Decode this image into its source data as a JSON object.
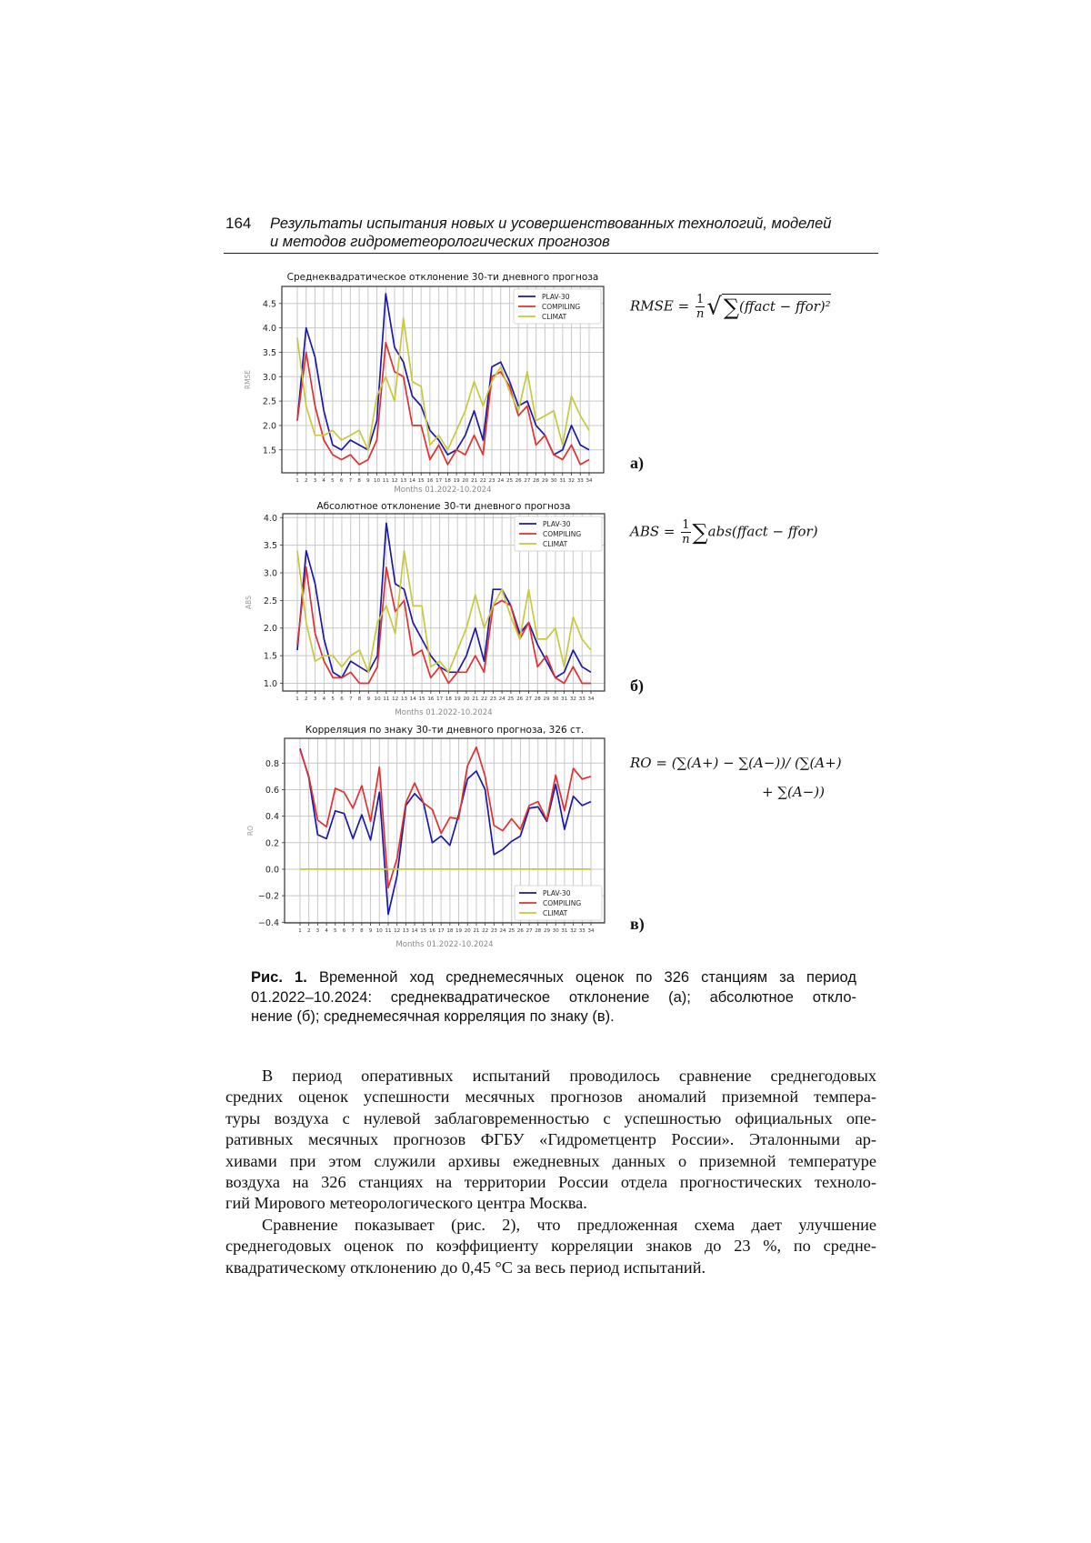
{
  "header": {
    "page_number": "164",
    "title_line1": "Результаты испытания новых и усовершенствованных технологий, моделей",
    "title_line2": "и методов гидрометеорологических прогнозов"
  },
  "formulas": {
    "rmse": {
      "lhs": "RMSE =",
      "num": "1",
      "den": "n",
      "sum": "∑",
      "body": "(ffact − ffor)²"
    },
    "abs": {
      "lhs": "ABS =",
      "num": "1",
      "den": "n",
      "sum": "∑",
      "body": "abs(ffact − ffor)"
    },
    "ro": {
      "line1": "RO = (∑(A+) − ∑(A−))/ (∑(A+)",
      "line2": "+ ∑(A−))"
    }
  },
  "panel_labels": [
    "а)",
    "б)",
    "в)"
  ],
  "colors": {
    "plav": "#1a1aa6",
    "compiling": "#e03030",
    "climat": "#c8c83a"
  },
  "chart_data": [
    {
      "type": "line",
      "title": "Среднеквадратическое отклонение 30-ти дневного прогноза",
      "xlabel": "Months 01.2022-10.2024",
      "ylabel": "RMSE",
      "x": [
        1,
        2,
        3,
        4,
        5,
        6,
        7,
        8,
        9,
        10,
        11,
        12,
        13,
        14,
        15,
        16,
        17,
        18,
        19,
        20,
        21,
        22,
        23,
        24,
        25,
        26,
        27,
        28,
        29,
        30,
        31,
        32,
        33,
        34
      ],
      "ylim": [
        1.03,
        4.85
      ],
      "yticks": [
        "1.5",
        "2.0",
        "2.5",
        "3.0",
        "3.5",
        "4.0",
        "4.5"
      ],
      "grid": true,
      "legend": "top-right",
      "series": [
        {
          "name": "PLAV-30",
          "values": [
            2.1,
            4.0,
            3.4,
            2.3,
            1.6,
            1.5,
            1.7,
            1.6,
            1.5,
            2.1,
            4.7,
            3.6,
            3.3,
            2.6,
            2.4,
            1.9,
            1.7,
            1.4,
            1.5,
            1.8,
            2.3,
            1.7,
            3.2,
            3.3,
            2.9,
            2.4,
            2.5,
            2.0,
            1.8,
            1.4,
            1.5,
            2.0,
            1.6,
            1.5
          ]
        },
        {
          "name": "COMPILING",
          "values": [
            2.1,
            3.5,
            2.4,
            1.7,
            1.4,
            1.3,
            1.4,
            1.2,
            1.3,
            1.7,
            3.7,
            3.1,
            3.0,
            2.0,
            2.0,
            1.3,
            1.6,
            1.2,
            1.5,
            1.4,
            1.8,
            1.4,
            3.0,
            3.1,
            2.8,
            2.2,
            2.4,
            1.6,
            1.8,
            1.4,
            1.3,
            1.6,
            1.2,
            1.3
          ]
        },
        {
          "name": "CLIMAT",
          "values": [
            3.8,
            2.4,
            1.8,
            1.8,
            1.9,
            1.7,
            1.8,
            1.9,
            1.5,
            2.6,
            3.0,
            2.5,
            4.2,
            2.9,
            2.8,
            1.6,
            1.8,
            1.5,
            1.9,
            2.3,
            2.9,
            2.4,
            2.9,
            3.2,
            2.7,
            2.3,
            3.1,
            2.1,
            2.2,
            2.3,
            1.6,
            2.6,
            2.2,
            1.9
          ]
        }
      ]
    },
    {
      "type": "line",
      "title": "Абсолютное отклонение 30-ти дневного прогноза",
      "xlabel": "Months 01.2022-10.2024",
      "ylabel": "ABS",
      "x": [
        1,
        2,
        3,
        4,
        5,
        6,
        7,
        8,
        9,
        10,
        11,
        12,
        13,
        14,
        15,
        16,
        17,
        18,
        19,
        20,
        21,
        22,
        23,
        24,
        25,
        26,
        27,
        28,
        29,
        30,
        31,
        32,
        33,
        34
      ],
      "ylim": [
        0.86,
        4.07
      ],
      "yticks": [
        "1.0",
        "1.5",
        "2.0",
        "2.5",
        "3.0",
        "3.5",
        "4.0"
      ],
      "grid": true,
      "legend": "top-right",
      "series": [
        {
          "name": "PLAV-30",
          "values": [
            1.6,
            3.4,
            2.8,
            1.8,
            1.2,
            1.1,
            1.4,
            1.3,
            1.2,
            1.5,
            3.9,
            2.8,
            2.7,
            2.1,
            1.8,
            1.5,
            1.3,
            1.2,
            1.2,
            1.5,
            2.0,
            1.4,
            2.7,
            2.7,
            2.4,
            1.9,
            2.1,
            1.7,
            1.4,
            1.1,
            1.2,
            1.6,
            1.3,
            1.2
          ]
        },
        {
          "name": "COMPILING",
          "values": [
            1.7,
            3.1,
            1.9,
            1.4,
            1.1,
            1.1,
            1.2,
            1.0,
            1.0,
            1.3,
            3.1,
            2.3,
            2.5,
            1.5,
            1.6,
            1.1,
            1.3,
            1.0,
            1.2,
            1.2,
            1.5,
            1.2,
            2.4,
            2.5,
            2.4,
            1.8,
            2.1,
            1.3,
            1.5,
            1.1,
            1.0,
            1.3,
            1.0,
            1.0
          ]
        },
        {
          "name": "CLIMAT",
          "values": [
            3.4,
            2.1,
            1.4,
            1.5,
            1.5,
            1.3,
            1.5,
            1.6,
            1.2,
            2.1,
            2.4,
            1.9,
            3.4,
            2.4,
            2.4,
            1.3,
            1.4,
            1.2,
            1.6,
            2.0,
            2.6,
            2.0,
            2.4,
            2.7,
            2.2,
            1.8,
            2.7,
            1.8,
            1.8,
            2.0,
            1.3,
            2.2,
            1.8,
            1.6
          ]
        }
      ]
    },
    {
      "type": "line",
      "title": "Корреляция по знаку 30-ти дневного прогноза, 326 ст.",
      "xlabel": "Months 01.2022-10.2024",
      "ylabel": "RO",
      "x": [
        1,
        2,
        3,
        4,
        5,
        6,
        7,
        8,
        9,
        10,
        11,
        12,
        13,
        14,
        15,
        16,
        17,
        18,
        19,
        20,
        21,
        22,
        23,
        24,
        25,
        26,
        27,
        28,
        29,
        30,
        31,
        32,
        33,
        34
      ],
      "ylim": [
        -0.405,
        0.987
      ],
      "yticks": [
        "−0.4",
        "−0.2",
        "0.0",
        "0.2",
        "0.4",
        "0.6",
        "0.8"
      ],
      "grid": true,
      "legend": "bottom-right",
      "series": [
        {
          "name": "PLAV-30",
          "values": [
            0.91,
            0.69,
            0.26,
            0.23,
            0.44,
            0.42,
            0.23,
            0.41,
            0.22,
            0.58,
            -0.34,
            -0.05,
            0.48,
            0.57,
            0.5,
            0.2,
            0.25,
            0.18,
            0.41,
            0.68,
            0.74,
            0.6,
            0.11,
            0.15,
            0.21,
            0.25,
            0.46,
            0.47,
            0.36,
            0.64,
            0.3,
            0.55,
            0.48,
            0.51
          ]
        },
        {
          "name": "COMPILING",
          "values": [
            0.9,
            0.7,
            0.37,
            0.32,
            0.61,
            0.58,
            0.46,
            0.63,
            0.36,
            0.77,
            -0.14,
            0.08,
            0.5,
            0.65,
            0.5,
            0.45,
            0.27,
            0.39,
            0.38,
            0.78,
            0.92,
            0.7,
            0.33,
            0.29,
            0.38,
            0.3,
            0.48,
            0.51,
            0.37,
            0.71,
            0.44,
            0.76,
            0.68,
            0.7
          ]
        },
        {
          "name": "CLIMAT",
          "values": [
            0,
            0,
            0,
            0,
            0,
            0,
            0,
            0,
            0,
            0,
            0,
            0,
            0,
            0,
            0,
            0,
            0,
            0,
            0,
            0,
            0,
            0,
            0,
            0,
            0,
            0,
            0,
            0,
            0,
            0,
            0,
            0,
            0,
            0
          ]
        }
      ]
    }
  ],
  "caption": {
    "label": "Рис. 1.",
    "lines": [
      " Временной ход среднемесячных оценок по 326 станциям за период",
      "01.2022–10.2024: среднеквадратическое отклонение (а); абсолютное откло-",
      "нение (б); среднемесячная корреляция по знаку (в)."
    ]
  },
  "body": {
    "lines": [
      "В период оперативных испытаний проводилось сравнение среднегодовых",
      "средних оценок успешности месячных прогнозов аномалий приземной темпера-",
      "туры воздуха с нулевой заблаговременностью с успешностью официальных опе-",
      "ративных месячных прогнозов ФГБУ «Гидрометцентр России». Эталонными ар-",
      "хивами при этом служили архивы ежедневных данных о приземной температуре",
      "воздуха на 326 станциях на территории России отдела прогностических техноло-",
      "гий Мирового метеорологического центра Москва.",
      "Сравнение показывает (рис. 2), что предложенная схема дает улучшение",
      "среднегодовых оценок по коэффициенту корреляции знаков до 23 %, по средне-",
      "квадратическому отклонению до 0,45 °С за весь период испытаний."
    ]
  }
}
